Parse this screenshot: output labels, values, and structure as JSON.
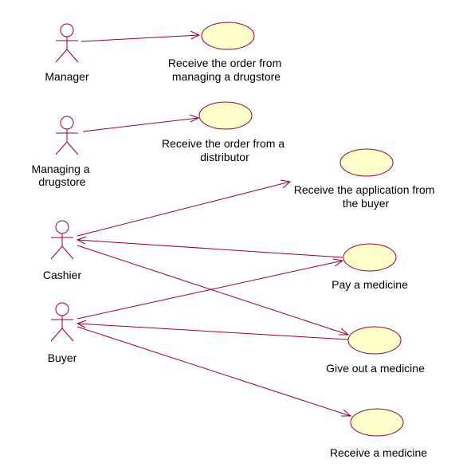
{
  "colors": {
    "line": "#990033",
    "usecase_fill": "#ffffcc",
    "text": "#000000"
  },
  "actors": [
    {
      "id": "manager",
      "label_lines": [
        "Manager"
      ]
    },
    {
      "id": "managing",
      "label_lines": [
        "Managing a",
        "drugstore"
      ]
    },
    {
      "id": "cashier",
      "label_lines": [
        "Cashier"
      ]
    },
    {
      "id": "buyer",
      "label_lines": [
        "Buyer"
      ]
    }
  ],
  "usecases": [
    {
      "id": "uc1",
      "label_lines": [
        "Receive the order from",
        "managing a drugstore"
      ]
    },
    {
      "id": "uc2",
      "label_lines": [
        "Receive the order from a",
        "distributor"
      ]
    },
    {
      "id": "uc3",
      "label_lines": [
        "Receive the application from",
        "the buyer"
      ]
    },
    {
      "id": "uc4",
      "label_lines": [
        "Pay a medicine"
      ]
    },
    {
      "id": "uc5",
      "label_lines": [
        "Give out a medicine"
      ]
    },
    {
      "id": "uc6",
      "label_lines": [
        "Receive a medicine"
      ]
    }
  ],
  "associations": [
    {
      "from": "manager",
      "to": "uc1"
    },
    {
      "from": "managing",
      "to": "uc2"
    },
    {
      "from": "cashier",
      "to": "uc3"
    },
    {
      "from": "uc4",
      "to": "cashier"
    },
    {
      "from": "cashier",
      "to": "uc5"
    },
    {
      "from": "buyer",
      "to": "uc4"
    },
    {
      "from": "uc5",
      "to": "buyer"
    },
    {
      "from": "buyer",
      "to": "uc6"
    }
  ]
}
